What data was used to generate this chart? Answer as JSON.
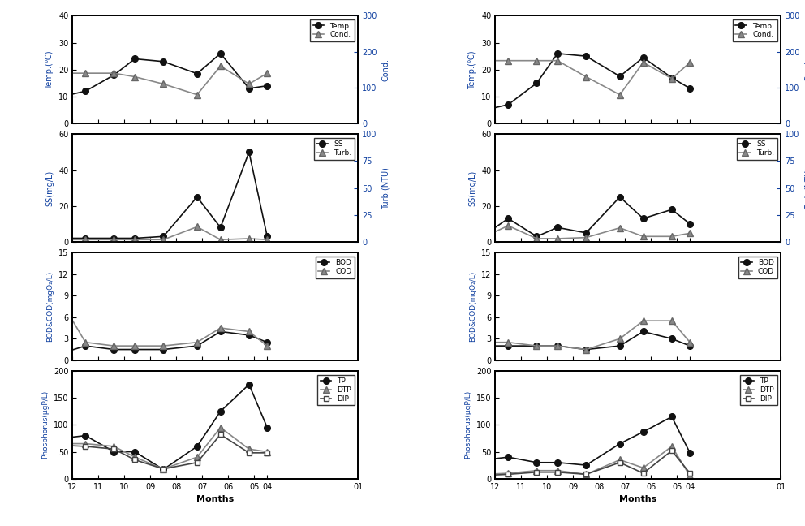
{
  "months": [
    4.5,
    5.2,
    6.3,
    7.2,
    8.5,
    9.6,
    10.4,
    11.5,
    12.4
  ],
  "xtick_positions": [
    4.5,
    5,
    6,
    7,
    8,
    9,
    10,
    11,
    12,
    1
  ],
  "xtick_labels": [
    "04",
    "05",
    "06",
    "07",
    "08",
    "09",
    "10",
    "11",
    "12",
    "01"
  ],
  "left": {
    "temp": [
      14,
      13,
      26,
      18.5,
      23,
      24,
      18,
      12,
      10
    ],
    "cond": [
      140,
      110,
      160,
      80,
      110,
      130,
      140,
      140,
      140
    ],
    "ss": [
      3,
      50,
      8,
      25,
      3,
      2,
      2,
      2,
      2
    ],
    "turb": [
      2,
      3,
      2,
      14,
      2,
      2,
      2,
      2,
      2
    ],
    "bod": [
      2.5,
      3.5,
      4,
      2,
      1.5,
      1.5,
      1.5,
      2,
      1
    ],
    "cod": [
      2,
      4,
      4.5,
      2.5,
      2,
      2,
      2,
      2.5,
      8
    ],
    "tp": [
      95,
      175,
      125,
      60,
      17,
      50,
      50,
      80,
      75
    ],
    "dtp": [
      50,
      55,
      95,
      40,
      18,
      40,
      60,
      65,
      65
    ],
    "dip": [
      48,
      48,
      82,
      30,
      18,
      35,
      55,
      60,
      62
    ]
  },
  "right": {
    "temp": [
      13,
      17,
      24.5,
      17.5,
      25,
      26,
      15,
      7,
      5
    ],
    "cond": [
      170,
      125,
      170,
      80,
      130,
      175,
      175,
      175,
      175
    ],
    "ss": [
      10,
      18,
      13,
      25,
      5,
      8,
      3,
      13,
      4
    ],
    "turb": [
      8,
      5,
      5,
      13,
      4,
      3,
      3,
      15,
      5
    ],
    "bod": [
      2,
      3,
      4,
      2,
      1.5,
      2,
      2,
      2,
      2
    ],
    "cod": [
      2.5,
      5.5,
      5.5,
      3,
      1.5,
      2,
      2,
      2.5,
      2.5
    ],
    "tp": [
      48,
      115,
      87,
      65,
      25,
      30,
      30,
      40,
      35
    ],
    "dtp": [
      5,
      60,
      20,
      35,
      8,
      15,
      15,
      10,
      8
    ],
    "dip": [
      10,
      52,
      10,
      30,
      8,
      12,
      12,
      8,
      6
    ]
  },
  "colors": {
    "filled_circle": "#111111",
    "open_triangle": "#888888",
    "open_square": "#444444",
    "ylabel_color": "#1040a0",
    "right_axis_color": "#1040a0",
    "line_color": "#111111",
    "tri_line_color": "#888888"
  },
  "ylims": {
    "temp": [
      0,
      40
    ],
    "cond": [
      0,
      300
    ],
    "ss": [
      0,
      60
    ],
    "turb": [
      0,
      100
    ],
    "bod_cod": [
      0,
      15
    ],
    "phosphorus": [
      0,
      200
    ]
  },
  "yticks": {
    "temp": [
      0,
      10,
      20,
      30,
      40
    ],
    "cond": [
      0,
      100,
      200,
      300
    ],
    "ss": [
      0,
      20,
      40,
      60
    ],
    "turb": [
      0,
      25,
      50,
      75,
      100
    ],
    "bod_cod": [
      0,
      3,
      6,
      9,
      12,
      15
    ],
    "phosphorus": [
      0,
      50,
      100,
      150,
      200
    ]
  }
}
